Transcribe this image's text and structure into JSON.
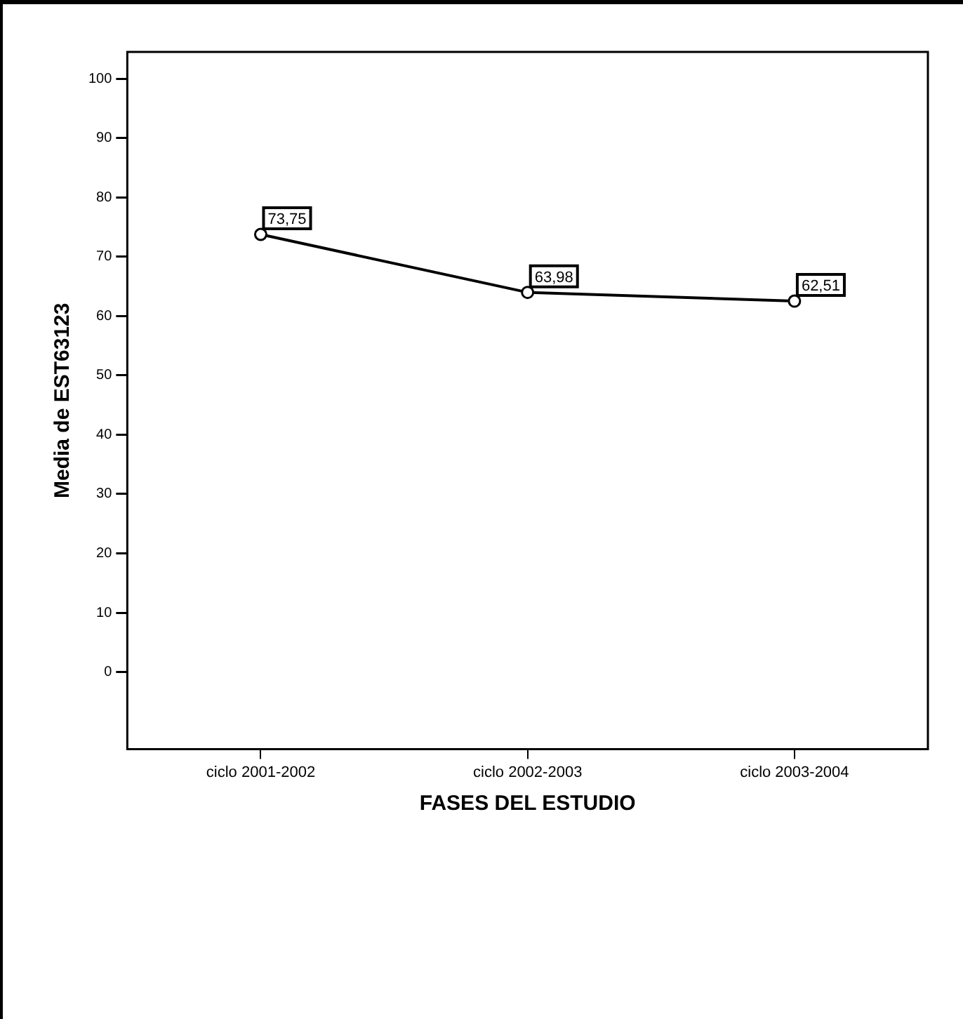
{
  "chart_data": {
    "type": "line",
    "xlabel": "FASES DEL ESTUDIO",
    "ylabel": "Media de EST63123",
    "categories": [
      "ciclo 2001-2002",
      "ciclo 2002-2003",
      "ciclo 2003-2004"
    ],
    "series": [
      {
        "color": "#000000",
        "values": [
          73.75,
          63.98,
          62.51
        ],
        "value_labels": [
          "73,75",
          "63,98",
          "62,51"
        ]
      }
    ],
    "ylim": [
      -13,
      104.5
    ],
    "yticks": [
      0,
      10,
      20,
      30,
      40,
      50,
      60,
      70,
      80,
      90,
      100
    ],
    "grid": false,
    "legend": false,
    "marker": "circle",
    "line_style": "solid"
  }
}
